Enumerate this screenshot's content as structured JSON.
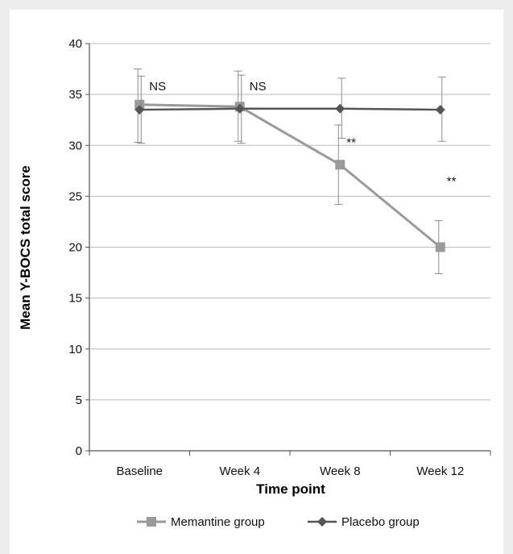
{
  "chart_data": {
    "type": "line",
    "title": "",
    "xlabel": "Time point",
    "ylabel": "Mean Y-BOCS total score",
    "categories": [
      "Baseline",
      "Week 4",
      "Week 8",
      "Week 12"
    ],
    "ylim": [
      0,
      40
    ],
    "yticks": [
      0,
      5,
      10,
      15,
      20,
      25,
      30,
      35,
      40
    ],
    "grid": true,
    "legend_position": "bottom",
    "series": [
      {
        "name": "Memantine group",
        "marker": "square",
        "color": "#9a9a9a",
        "values": [
          34.0,
          33.8,
          28.1,
          20.0
        ],
        "error_low": [
          30.3,
          30.4,
          24.2,
          17.4
        ],
        "error_high": [
          37.5,
          37.3,
          32.0,
          22.6
        ]
      },
      {
        "name": "Placebo group",
        "marker": "diamond",
        "color": "#555555",
        "values": [
          33.5,
          33.6,
          33.6,
          33.5
        ],
        "error_low": [
          30.2,
          30.2,
          30.7,
          30.4
        ],
        "error_high": [
          36.8,
          36.9,
          36.6,
          36.7
        ]
      }
    ],
    "annotations": [
      {
        "category": "Baseline",
        "text": "NS",
        "y": 35.8
      },
      {
        "category": "Week 4",
        "text": "NS",
        "y": 35.8
      },
      {
        "category": "Week 8",
        "text": "**",
        "y": 30.3
      },
      {
        "category": "Week 12",
        "text": "**",
        "y": 26.5
      }
    ]
  }
}
